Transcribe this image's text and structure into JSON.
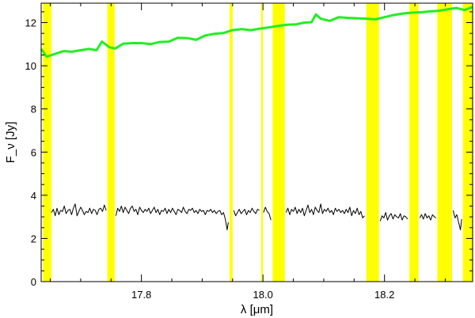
{
  "chart_data": {
    "type": "line",
    "xlabel": "λ [μm]",
    "ylabel": "F_ν [Jy]",
    "xlim": [
      17.635,
      18.345
    ],
    "ylim": [
      0,
      12.9
    ],
    "xticks": [
      17.8,
      18.0,
      18.2
    ],
    "xtick_labels": [
      "17.8",
      "18.0",
      "18.2"
    ],
    "yticks": [
      0,
      2,
      4,
      6,
      8,
      10,
      12
    ],
    "ytick_labels": [
      "0",
      "2",
      "4",
      "6",
      "8",
      "10",
      "12"
    ],
    "grid": false,
    "colors": {
      "continuum": "#22ee22",
      "spectrum": "#000000",
      "bands": "#ffff00"
    },
    "masked_bands": [
      [
        17.638,
        17.652
      ],
      [
        17.744,
        17.756
      ],
      [
        17.945,
        17.95
      ],
      [
        17.997,
        18.0
      ],
      [
        18.016,
        18.036
      ],
      [
        18.17,
        18.191
      ],
      [
        18.241,
        18.256
      ],
      [
        18.287,
        18.311
      ],
      [
        18.329,
        18.345
      ]
    ],
    "series": [
      {
        "style": "thick-line",
        "x": [
          17.635,
          17.644,
          17.658,
          17.672,
          17.686,
          17.7,
          17.714,
          17.726,
          17.735,
          17.747,
          17.757,
          17.77,
          17.785,
          17.8,
          17.815,
          17.83,
          17.845,
          17.86,
          17.876,
          17.89,
          17.905,
          17.92,
          17.935,
          17.95,
          17.965,
          17.98,
          17.995,
          18.01,
          18.025,
          18.04,
          18.055,
          18.068,
          18.08,
          18.087,
          18.095,
          18.11,
          18.125,
          18.14,
          18.155,
          18.17,
          18.185,
          18.2,
          18.215,
          18.23,
          18.245,
          18.26,
          18.275,
          18.29,
          18.305,
          18.318,
          18.332,
          18.345
        ],
        "y": [
          10.78,
          10.42,
          10.55,
          10.68,
          10.65,
          10.72,
          10.78,
          10.72,
          11.12,
          10.86,
          10.8,
          11.02,
          11.05,
          11.05,
          11.0,
          11.1,
          11.12,
          11.3,
          11.28,
          11.2,
          11.4,
          11.48,
          11.52,
          11.65,
          11.7,
          11.65,
          11.72,
          11.78,
          11.85,
          11.9,
          11.92,
          12.0,
          12.02,
          12.38,
          12.18,
          12.08,
          12.25,
          12.22,
          12.2,
          12.18,
          12.15,
          12.25,
          12.35,
          12.42,
          12.46,
          12.48,
          12.52,
          12.55,
          12.62,
          12.68,
          12.58,
          12.72
        ]
      },
      {
        "style": "thin-line",
        "x": [
          17.652,
          17.655,
          17.658,
          17.661,
          17.664,
          17.667,
          17.67,
          17.673,
          17.676,
          17.679,
          17.682,
          17.685,
          17.688,
          17.691,
          17.694,
          17.697,
          17.7,
          17.703,
          17.706,
          17.709,
          17.712,
          17.715,
          17.718,
          17.721,
          17.724,
          17.727,
          17.73,
          17.733,
          17.736,
          17.739,
          17.742,
          null,
          17.758,
          17.761,
          17.764,
          17.767,
          17.77,
          17.773,
          17.776,
          17.779,
          17.782,
          17.785,
          17.788,
          17.791,
          17.794,
          17.797,
          17.8,
          17.803,
          17.806,
          17.809,
          17.812,
          17.815,
          17.818,
          17.821,
          17.824,
          17.827,
          17.83,
          17.833,
          17.836,
          17.839,
          17.842,
          17.845,
          17.848,
          17.851,
          17.854,
          17.857,
          17.86,
          17.863,
          17.866,
          17.869,
          17.872,
          17.875,
          17.878,
          17.881,
          17.884,
          17.887,
          17.89,
          17.893,
          17.896,
          17.899,
          17.902,
          17.905,
          17.908,
          17.911,
          17.914,
          17.917,
          17.92,
          17.923,
          17.926,
          17.929,
          17.932,
          17.935,
          17.938,
          17.941,
          17.943,
          null,
          17.952,
          17.955,
          17.958,
          17.961,
          17.964,
          17.967,
          17.97,
          17.973,
          17.976,
          17.979,
          17.982,
          17.985,
          17.988,
          17.991,
          17.994,
          null,
          18.001,
          18.004,
          18.007,
          18.01,
          18.013,
          null,
          18.038,
          18.041,
          18.044,
          18.047,
          18.05,
          18.053,
          18.056,
          18.059,
          18.062,
          18.065,
          18.068,
          18.071,
          18.074,
          18.077,
          18.08,
          18.083,
          18.086,
          18.089,
          18.092,
          18.095,
          18.098,
          18.101,
          18.104,
          18.107,
          18.11,
          18.113,
          18.116,
          18.119,
          18.122,
          18.125,
          18.128,
          18.131,
          18.134,
          18.137,
          18.14,
          18.143,
          18.146,
          18.149,
          18.152,
          18.155,
          18.158,
          18.161,
          18.164,
          18.167,
          null,
          18.193,
          18.196,
          18.199,
          18.202,
          18.205,
          18.208,
          18.211,
          18.214,
          18.217,
          18.22,
          18.223,
          18.226,
          18.229,
          18.232,
          18.235,
          18.238,
          null,
          18.258,
          18.261,
          18.264,
          18.267,
          18.27,
          18.273,
          18.276,
          18.279,
          18.282,
          18.285,
          null,
          18.313,
          18.316,
          18.319,
          18.322,
          18.325,
          18.327
        ],
        "y": [
          3.2,
          3.35,
          3.05,
          3.4,
          3.1,
          3.3,
          3.25,
          3.5,
          3.15,
          3.3,
          3.35,
          3.1,
          3.4,
          3.6,
          3.05,
          3.25,
          3.45,
          3.3,
          3.1,
          3.25,
          3.2,
          3.4,
          3.15,
          3.35,
          3.3,
          3.1,
          3.35,
          3.4,
          3.25,
          3.55,
          3.3,
          null,
          3.05,
          3.4,
          3.25,
          3.5,
          3.2,
          3.45,
          3.3,
          3.15,
          3.4,
          3.5,
          3.25,
          3.35,
          3.1,
          3.45,
          3.3,
          3.2,
          3.35,
          3.25,
          3.4,
          3.15,
          3.3,
          3.45,
          3.2,
          3.35,
          3.1,
          3.3,
          3.25,
          3.4,
          3.15,
          3.35,
          3.2,
          3.4,
          3.25,
          3.1,
          3.35,
          3.3,
          3.2,
          3.45,
          3.25,
          3.15,
          3.35,
          3.3,
          3.4,
          3.2,
          3.3,
          3.15,
          3.35,
          3.25,
          3.3,
          3.1,
          3.3,
          3.25,
          3.35,
          3.2,
          3.3,
          3.15,
          3.25,
          3.3,
          3.1,
          3.2,
          2.9,
          2.4,
          2.75,
          null,
          3.3,
          3.05,
          3.2,
          3.35,
          3.15,
          3.25,
          3.35,
          3.1,
          3.3,
          3.2,
          3.4,
          3.25,
          3.15,
          3.35,
          3.3,
          null,
          3.2,
          3.45,
          3.25,
          3.15,
          2.85,
          null,
          3.2,
          3.4,
          3.1,
          3.35,
          3.25,
          3.45,
          3.15,
          3.35,
          3.2,
          3.4,
          3.05,
          3.3,
          3.55,
          3.2,
          3.35,
          3.1,
          3.45,
          3.3,
          3.2,
          3.6,
          3.15,
          3.35,
          3.25,
          3.4,
          3.2,
          3.3,
          3.1,
          3.4,
          3.25,
          3.35,
          3.2,
          3.3,
          3.15,
          3.35,
          3.2,
          3.45,
          3.05,
          3.3,
          3.15,
          3.4,
          3.1,
          3.25,
          2.95,
          3.05,
          null,
          2.8,
          3.05,
          2.95,
          3.2,
          2.85,
          3.05,
          3.15,
          2.9,
          3.1,
          3.0,
          2.95,
          3.15,
          2.85,
          3.05,
          3.0,
          2.9,
          null,
          2.95,
          3.1,
          2.9,
          3.15,
          2.95,
          3.05,
          2.85,
          3.1,
          3.0,
          2.95,
          null,
          3.3,
          2.95,
          3.1,
          2.75,
          2.4,
          2.9
        ]
      }
    ]
  }
}
